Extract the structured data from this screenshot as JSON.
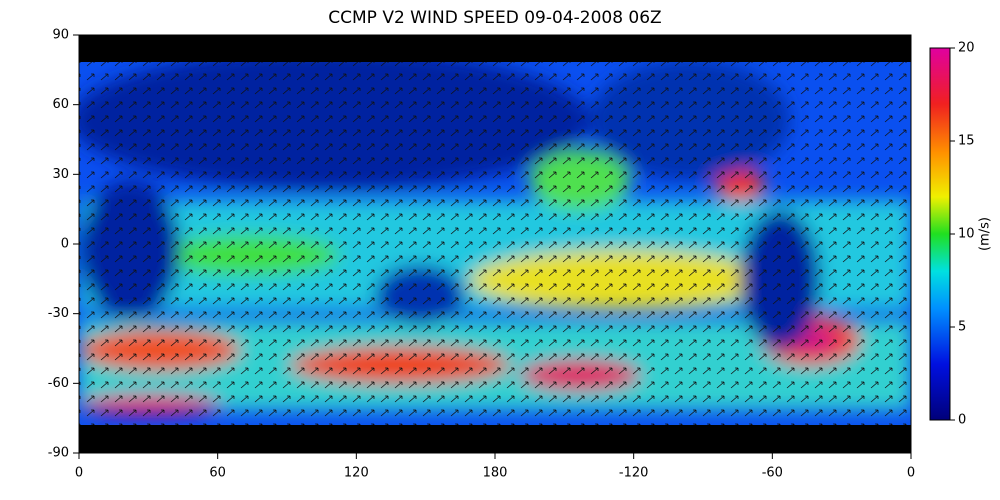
{
  "title": "CCMP V2 WIND SPEED 09-04-2008 06Z",
  "map": {
    "xticks": [
      0,
      60,
      120,
      180,
      -120,
      -60,
      0
    ],
    "yticks": [
      90,
      60,
      30,
      0,
      -30,
      -60,
      -90
    ],
    "ylim": [
      -90,
      90
    ]
  },
  "colorbar": {
    "label": "(m/s)",
    "ticks": [
      0,
      5,
      10,
      15,
      20
    ],
    "lim": [
      0,
      20
    ]
  }
}
